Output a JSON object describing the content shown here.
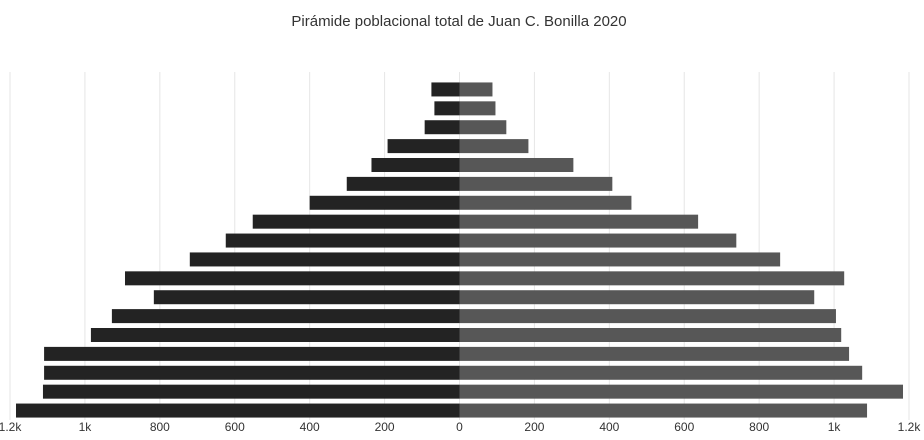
{
  "chart_data": {
    "type": "bar",
    "orientation": "horizontal",
    "title": "Pirámide poblacional total de Juan C. Bonilla 2020",
    "categories": [
      null,
      null,
      null,
      null,
      null,
      null,
      null,
      null,
      null,
      null,
      null,
      null,
      null,
      null,
      null,
      null,
      null,
      null
    ],
    "series": [
      {
        "color": "#232323",
        "values": [
          -75,
          -67,
          -93,
          -192,
          -235,
          -301,
          -400,
          -552,
          -624,
          -720,
          -893,
          -816,
          -928,
          -984,
          -1109,
          -1109,
          -1112,
          -1184
        ]
      },
      {
        "color": "#575757",
        "values": [
          88,
          96,
          125,
          184,
          304,
          408,
          459,
          637,
          739,
          856,
          1027,
          947,
          1005,
          1019,
          1040,
          1075,
          1184,
          1088
        ]
      }
    ],
    "xlim": [
      -1200,
      1200
    ],
    "xticks": [
      {
        "value": -1200,
        "label": "1.2k"
      },
      {
        "value": -1000,
        "label": "1k"
      },
      {
        "value": -800,
        "label": "800"
      },
      {
        "value": -600,
        "label": "600"
      },
      {
        "value": -400,
        "label": "400"
      },
      {
        "value": -200,
        "label": "200"
      },
      0,
      200,
      400,
      600,
      800,
      {
        "value": 1000,
        "label": "1k"
      },
      {
        "value": 1200,
        "label": "1.2k"
      }
    ],
    "grid": true
  }
}
